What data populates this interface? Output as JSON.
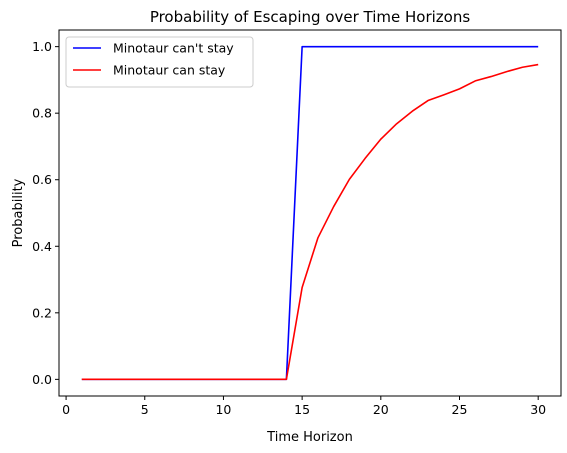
{
  "chart_data": {
    "type": "line",
    "title": "Probability of Escaping over Time Horizons",
    "xlabel": "Time Horizon",
    "ylabel": "Probability",
    "xlim": [
      -0.45,
      31.45
    ],
    "ylim": [
      -0.05,
      1.05
    ],
    "xticks": [
      0,
      5,
      10,
      15,
      20,
      25,
      30
    ],
    "yticks": [
      0.0,
      0.2,
      0.4,
      0.6,
      0.8,
      1.0
    ],
    "xtick_labels": [
      "0",
      "5",
      "10",
      "15",
      "20",
      "25",
      "30"
    ],
    "ytick_labels": [
      "0.0",
      "0.2",
      "0.4",
      "0.6",
      "0.8",
      "1.0"
    ],
    "grid": false,
    "legend_position": "upper-left",
    "x": [
      1,
      2,
      3,
      4,
      5,
      6,
      7,
      8,
      9,
      10,
      11,
      12,
      13,
      14,
      15,
      16,
      17,
      18,
      19,
      20,
      21,
      22,
      23,
      24,
      25,
      26,
      27,
      28,
      29,
      30
    ],
    "series": [
      {
        "name": "Minotaur can't stay",
        "color": "#0000ff",
        "values": [
          0,
          0,
          0,
          0,
          0,
          0,
          0,
          0,
          0,
          0,
          0,
          0,
          0,
          0,
          1,
          1,
          1,
          1,
          1,
          1,
          1,
          1,
          1,
          1,
          1,
          1,
          1,
          1,
          1,
          1
        ]
      },
      {
        "name": "Minotaur can stay",
        "color": "#ff0000",
        "values": [
          0,
          0,
          0,
          0,
          0,
          0,
          0,
          0,
          0,
          0,
          0,
          0,
          0,
          0,
          0.276,
          0.425,
          0.519,
          0.601,
          0.664,
          0.722,
          0.768,
          0.806,
          0.838,
          0.855,
          0.873,
          0.897,
          0.91,
          0.925,
          0.938,
          0.946
        ]
      }
    ]
  }
}
